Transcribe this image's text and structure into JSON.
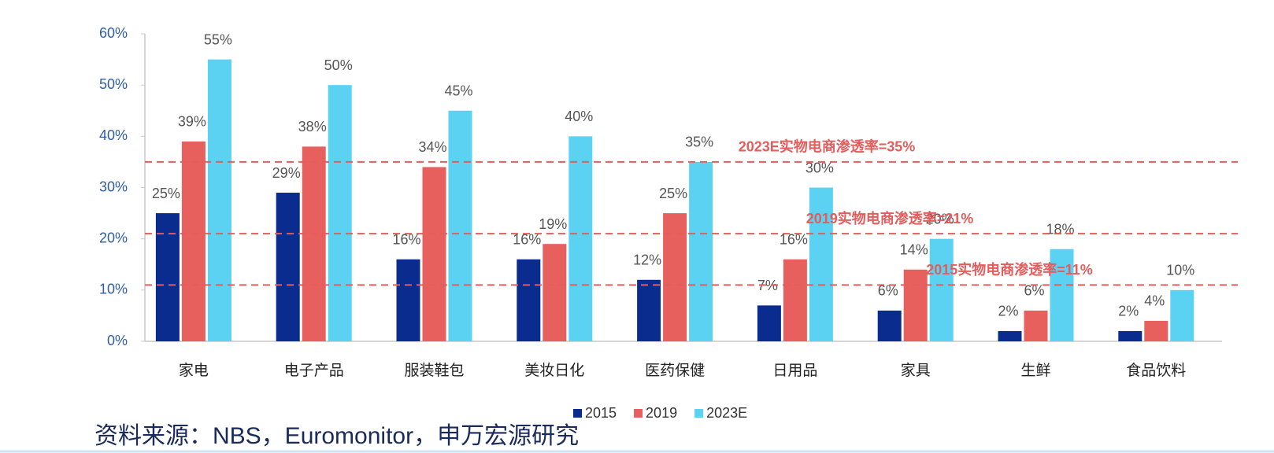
{
  "chart_data": {
    "type": "bar",
    "categories": [
      "家电",
      "电子产品",
      "服装鞋包",
      "美妆日化",
      "医药保健",
      "日用品",
      "家具",
      "生鲜",
      "食品饮料"
    ],
    "series": [
      {
        "name": "2015",
        "color": "#0b2c8f",
        "values": [
          25,
          29,
          16,
          16,
          12,
          7,
          6,
          2,
          2
        ],
        "value_labels": [
          "25%",
          "29%",
          "16%",
          "16%",
          "12%",
          "7%",
          "6%",
          "2%",
          "2%"
        ]
      },
      {
        "name": "2019",
        "color": "#e8605e",
        "values": [
          39,
          38,
          34,
          19,
          25,
          16,
          14,
          6,
          4
        ],
        "value_labels": [
          "39%",
          "38%",
          "34%",
          "19%",
          "25%",
          "16%",
          "14%",
          "6%",
          "4%"
        ]
      },
      {
        "name": "2023E",
        "color": "#5cd2f2",
        "values": [
          55,
          50,
          45,
          40,
          35,
          30,
          20,
          18,
          10
        ],
        "value_labels": [
          "55%",
          "50%",
          "45%",
          "40%",
          "35%",
          "30%",
          "20%",
          "18%",
          "10%"
        ]
      }
    ],
    "ylim": [
      0,
      60
    ],
    "yticks": [
      {
        "value": 0,
        "label": "0%"
      },
      {
        "value": 10,
        "label": "10%"
      },
      {
        "value": 20,
        "label": "20%"
      },
      {
        "value": 30,
        "label": "30%"
      },
      {
        "value": 40,
        "label": "40%"
      },
      {
        "value": 50,
        "label": "50%"
      },
      {
        "value": 60,
        "label": "60%"
      }
    ],
    "reference_lines": [
      {
        "value": 35,
        "label": "2023E实物电商渗透率=35%",
        "color": "#e35d5d"
      },
      {
        "value": 21,
        "label": "2019实物电商渗透率=21%",
        "color": "#e35d5d"
      },
      {
        "value": 11,
        "label": "2015实物电商渗透率=11%",
        "color": "#e35d5d"
      }
    ],
    "legend": "bottom",
    "source": "资料来源：NBS，Euromonitor，申万宏源研究"
  }
}
